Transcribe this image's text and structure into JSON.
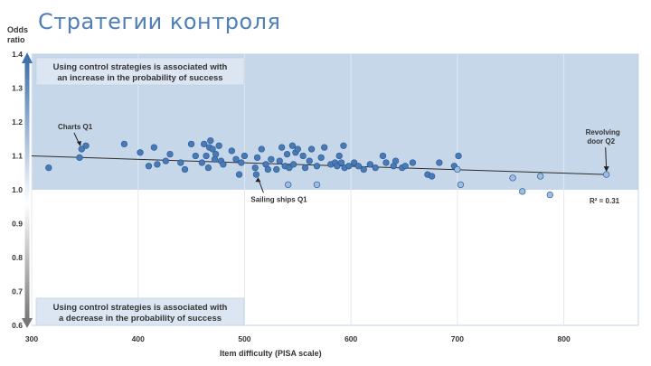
{
  "slide": {
    "title": "Стратегии контроля"
  },
  "chart_data": {
    "type": "scatter",
    "title": "",
    "ylabel": "Odds ratio",
    "xlabel": "Item difficulty (PISA scale)",
    "xlim": [
      300,
      870
    ],
    "ylim": [
      0.6,
      1.4
    ],
    "xticks": [
      "300",
      "400",
      "500",
      "600",
      "700",
      "800"
    ],
    "yticks": [
      "0.6",
      "0.7",
      "0.8",
      "0.9",
      "1.0",
      "1.1",
      "1.2",
      "1.3",
      "1.4"
    ],
    "x_tick_values": [
      300,
      400,
      500,
      600,
      700,
      800
    ],
    "y_tick_values": [
      0.6,
      0.7,
      0.8,
      0.9,
      1.0,
      1.1,
      1.2,
      1.3,
      1.4
    ],
    "upper_box_text": [
      "Using control strategies is associated with",
      "an increase in the probability of success"
    ],
    "lower_box_text": [
      "Using control strategies is associated with",
      "a decrease in the probability of success"
    ],
    "r_squared_label": "R² = 0.31",
    "trendline": {
      "x": [
        300,
        840
      ],
      "y": [
        1.1,
        1.045
      ]
    },
    "annotations": [
      {
        "text": "Charts Q1",
        "x": 345,
        "y": 1.12
      },
      {
        "text": "Sailing ships Q1",
        "x": 511,
        "y": 1.05
      },
      {
        "text": "Revolving door Q2",
        "x": 840,
        "y": 1.045
      }
    ],
    "colors": {
      "upper_band": "#c6d7ea",
      "point_significant": "#4a7ab6",
      "point_nonsignificant": "#9dbde2",
      "point_edge": "#2c5d95",
      "trend": "#2a2a2a",
      "title": "#4f7fb8"
    },
    "series": [
      {
        "name": "",
        "color": "#4a7ab6",
        "points": [
          [
            316,
            1.065
          ],
          [
            345,
            1.095
          ],
          [
            347,
            1.12
          ],
          [
            351,
            1.13
          ],
          [
            387,
            1.135
          ],
          [
            402,
            1.11
          ],
          [
            410,
            1.07
          ],
          [
            415,
            1.125
          ],
          [
            418,
            1.075
          ],
          [
            426,
            1.085
          ],
          [
            430,
            1.105
          ],
          [
            440,
            1.08
          ],
          [
            444,
            1.06
          ],
          [
            450,
            1.135
          ],
          [
            454,
            1.1
          ],
          [
            460,
            1.08
          ],
          [
            462,
            1.135
          ],
          [
            464,
            1.1
          ],
          [
            466,
            1.065
          ],
          [
            467,
            1.125
          ],
          [
            468,
            1.145
          ],
          [
            470,
            1.12
          ],
          [
            472,
            1.09
          ],
          [
            473,
            1.105
          ],
          [
            476,
            1.13
          ],
          [
            478,
            1.085
          ],
          [
            480,
            1.075
          ],
          [
            488,
            1.115
          ],
          [
            492,
            1.09
          ],
          [
            495,
            1.045
          ],
          [
            497,
            1.08
          ],
          [
            500,
            1.1
          ],
          [
            510,
            1.065
          ],
          [
            511,
            1.045
          ],
          [
            512,
            1.095
          ],
          [
            516,
            1.12
          ],
          [
            520,
            1.075
          ],
          [
            522,
            1.06
          ],
          [
            525,
            1.09
          ],
          [
            530,
            1.06
          ],
          [
            533,
            1.085
          ],
          [
            535,
            1.125
          ],
          [
            538,
            1.07
          ],
          [
            540,
            1.105
          ],
          [
            542,
            1.065
          ],
          [
            545,
            1.13
          ],
          [
            546,
            1.075
          ],
          [
            548,
            1.11
          ],
          [
            550,
            1.12
          ],
          [
            555,
            1.1
          ],
          [
            557,
            1.065
          ],
          [
            561,
            1.085
          ],
          [
            563,
            1.12
          ],
          [
            568,
            1.07
          ],
          [
            572,
            1.095
          ],
          [
            575,
            1.125
          ],
          [
            581,
            1.075
          ],
          [
            585,
            1.08
          ],
          [
            587,
            1.07
          ],
          [
            589,
            1.1
          ],
          [
            591,
            1.08
          ],
          [
            593,
            1.13
          ],
          [
            594,
            1.065
          ],
          [
            598,
            1.07
          ],
          [
            603,
            1.08
          ],
          [
            607,
            1.07
          ],
          [
            612,
            1.06
          ],
          [
            618,
            1.075
          ],
          [
            623,
            1.065
          ],
          [
            630,
            1.1
          ],
          [
            633,
            1.08
          ],
          [
            640,
            1.07
          ],
          [
            642,
            1.085
          ],
          [
            648,
            1.065
          ],
          [
            651,
            1.07
          ],
          [
            658,
            1.08
          ],
          [
            672,
            1.045
          ],
          [
            676,
            1.04
          ],
          [
            683,
            1.08
          ],
          [
            697,
            1.07
          ],
          [
            701,
            1.1
          ]
        ]
      },
      {
        "name": "",
        "color": "#9dbde2",
        "points": [
          [
            541,
            1.015
          ],
          [
            568,
            1.015
          ],
          [
            700,
            1.06
          ],
          [
            703,
            1.015
          ],
          [
            752,
            1.035
          ],
          [
            761,
            0.995
          ],
          [
            778,
            1.04
          ],
          [
            787,
            0.985
          ],
          [
            840,
            1.045
          ]
        ]
      }
    ]
  }
}
